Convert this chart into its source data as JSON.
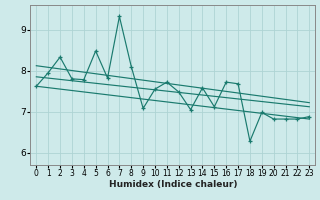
{
  "title": "",
  "xlabel": "Humidex (Indice chaleur)",
  "bg_color": "#ceeaea",
  "grid_color": "#aed4d4",
  "line_color": "#1a7a6e",
  "xlim": [
    -0.5,
    23.5
  ],
  "ylim": [
    5.7,
    9.6
  ],
  "yticks": [
    6,
    7,
    8,
    9
  ],
  "xticks": [
    0,
    1,
    2,
    3,
    4,
    5,
    6,
    7,
    8,
    9,
    10,
    11,
    12,
    13,
    14,
    15,
    16,
    17,
    18,
    19,
    20,
    21,
    22,
    23
  ],
  "series1_x": [
    0,
    1,
    2,
    3,
    4,
    5,
    6,
    7,
    8,
    9,
    10,
    11,
    12,
    13,
    14,
    15,
    16,
    17,
    18,
    19,
    20,
    21,
    22,
    23
  ],
  "series1_y": [
    7.62,
    7.95,
    8.33,
    7.8,
    7.78,
    8.48,
    7.82,
    9.32,
    8.1,
    7.08,
    7.55,
    7.72,
    7.48,
    7.05,
    7.58,
    7.12,
    7.72,
    7.68,
    6.28,
    6.98,
    6.82,
    6.82,
    6.82,
    6.88
  ],
  "trend1_x": [
    0,
    23
  ],
  "trend1_y": [
    8.12,
    7.22
  ],
  "trend2_x": [
    0,
    23
  ],
  "trend2_y": [
    7.62,
    6.82
  ],
  "trend3_x": [
    0,
    23
  ],
  "trend3_y": [
    7.85,
    7.12
  ]
}
